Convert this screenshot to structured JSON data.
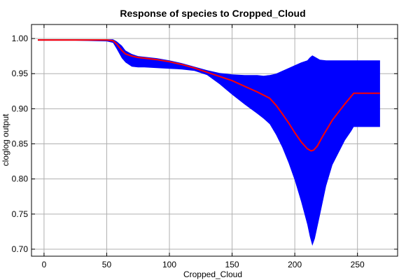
{
  "chart_data": {
    "type": "area",
    "title": "Response of species to Cropped_Cloud",
    "xlabel": "Cropped_Cloud",
    "ylabel": "cloglog output",
    "xlim": [
      -10,
      282
    ],
    "ylim": [
      0.69,
      1.02
    ],
    "xticks": [
      0,
      50,
      100,
      150,
      200,
      250
    ],
    "yticks": [
      0.7,
      0.75,
      0.8,
      0.85,
      0.9,
      0.95,
      1.0
    ],
    "xtick_labels": [
      "0",
      "50",
      "100",
      "150",
      "200",
      "250"
    ],
    "ytick_labels": [
      "0.70",
      "0.75",
      "0.80",
      "0.85",
      "0.90",
      "0.95",
      "1.00"
    ],
    "grid": true,
    "colors": {
      "band": "#0000ff",
      "mean": "#ff0000"
    },
    "series": [
      {
        "role": "band-upper",
        "x": [
          -5,
          0,
          25,
          50,
          55,
          58,
          62,
          65,
          70,
          75,
          80,
          90,
          100,
          110,
          120,
          130,
          140,
          150,
          160,
          170,
          175,
          180,
          185,
          190,
          195,
          200,
          205,
          210,
          212,
          214,
          216,
          220,
          225,
          230,
          240,
          250,
          260,
          268
        ],
        "y": [
          0.999,
          0.999,
          0.999,
          0.999,
          0.999,
          0.996,
          0.99,
          0.983,
          0.978,
          0.975,
          0.974,
          0.972,
          0.969,
          0.965,
          0.96,
          0.955,
          0.951,
          0.949,
          0.948,
          0.948,
          0.947,
          0.948,
          0.95,
          0.954,
          0.958,
          0.962,
          0.966,
          0.969,
          0.973,
          0.976,
          0.974,
          0.97,
          0.969,
          0.969,
          0.969,
          0.969,
          0.969,
          0.969
        ]
      },
      {
        "role": "band-lower",
        "x": [
          -5,
          0,
          25,
          50,
          55,
          58,
          62,
          65,
          70,
          75,
          80,
          90,
          100,
          110,
          120,
          130,
          140,
          150,
          160,
          170,
          175,
          180,
          185,
          190,
          195,
          200,
          205,
          210,
          212,
          214,
          216,
          220,
          225,
          230,
          240,
          245,
          247,
          250,
          260,
          268
        ],
        "y": [
          0.997,
          0.997,
          0.997,
          0.996,
          0.994,
          0.985,
          0.972,
          0.966,
          0.96,
          0.959,
          0.959,
          0.958,
          0.957,
          0.956,
          0.954,
          0.948,
          0.935,
          0.92,
          0.906,
          0.893,
          0.886,
          0.878,
          0.863,
          0.845,
          0.823,
          0.798,
          0.768,
          0.735,
          0.718,
          0.705,
          0.715,
          0.748,
          0.79,
          0.82,
          0.855,
          0.868,
          0.874,
          0.874,
          0.874,
          0.874
        ]
      },
      {
        "role": "mean",
        "x": [
          -5,
          0,
          25,
          50,
          55,
          58,
          62,
          65,
          70,
          75,
          80,
          90,
          100,
          110,
          120,
          130,
          140,
          150,
          160,
          170,
          180,
          185,
          190,
          195,
          200,
          205,
          210,
          213,
          215,
          218,
          222,
          230,
          240,
          247,
          250,
          260,
          268
        ],
        "y": [
          0.998,
          0.998,
          0.998,
          0.998,
          0.997,
          0.992,
          0.983,
          0.978,
          0.975,
          0.973,
          0.972,
          0.97,
          0.967,
          0.963,
          0.958,
          0.952,
          0.946,
          0.94,
          0.932,
          0.924,
          0.915,
          0.905,
          0.893,
          0.88,
          0.866,
          0.853,
          0.843,
          0.84,
          0.841,
          0.847,
          0.86,
          0.884,
          0.907,
          0.922,
          0.922,
          0.922,
          0.922
        ]
      }
    ]
  }
}
